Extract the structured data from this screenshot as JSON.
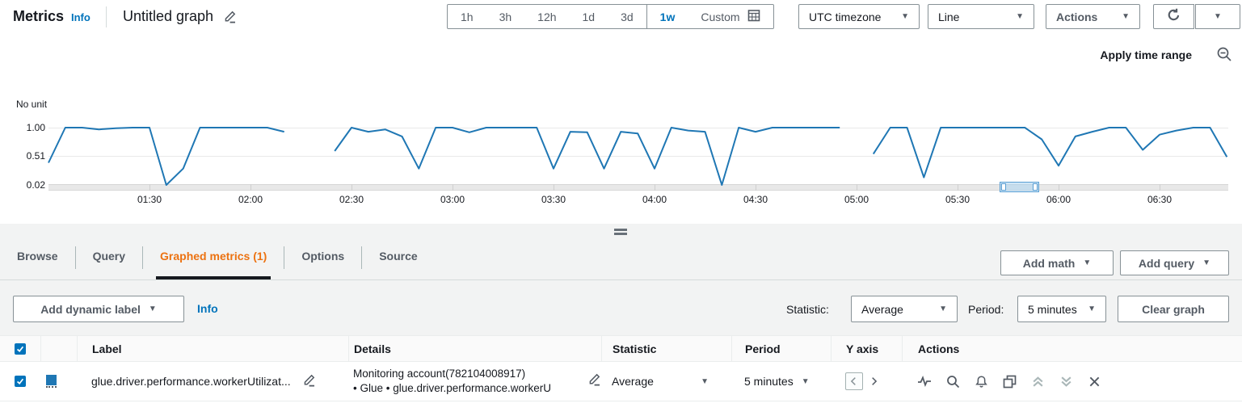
{
  "colors": {
    "accent_blue": "#0073bb",
    "active_tab_orange": "#ec7211",
    "series_blue": "#1f77b4"
  },
  "header": {
    "app_title": "Metrics",
    "info_link": "Info",
    "graph_name": "Untitled graph",
    "time_ranges": [
      "1h",
      "3h",
      "12h",
      "1d",
      "3d",
      "1w"
    ],
    "selected_time_range": "1w",
    "custom_button": "Custom",
    "timezone_dropdown": "UTC timezone",
    "chart_type_dropdown": "Line",
    "actions_button": "Actions"
  },
  "chart": {
    "apply_time_range_label": "Apply time range",
    "unit_label": "No unit"
  },
  "chart_data": {
    "type": "line",
    "title": "",
    "ylabel": "No unit",
    "ylim": [
      0.02,
      1.0
    ],
    "grid": true,
    "legend_position": "none",
    "y_tick_labels": [
      "1.00",
      "0.51",
      "0.02"
    ],
    "x_tick_labels": [
      "01:30",
      "02:00",
      "02:30",
      "03:00",
      "03:30",
      "04:00",
      "04:30",
      "05:00",
      "05:30",
      "06:00",
      "06:30"
    ],
    "x_tick_minutes": [
      90,
      120,
      150,
      180,
      210,
      240,
      270,
      300,
      330,
      360,
      390
    ],
    "x_range_minutes": [
      60,
      410
    ],
    "series": [
      {
        "name": "glue.driver.performance.workerUtilization",
        "color": "#1f77b4",
        "x_minutes": [
          60,
          65,
          70,
          75,
          80,
          85,
          90,
          95,
          100,
          105,
          110,
          115,
          120,
          125,
          130,
          135,
          140,
          145,
          150,
          155,
          160,
          165,
          170,
          175,
          180,
          185,
          190,
          195,
          200,
          205,
          210,
          215,
          220,
          225,
          230,
          235,
          240,
          245,
          250,
          255,
          260,
          265,
          270,
          275,
          280,
          285,
          290,
          295,
          300,
          305,
          310,
          315,
          320,
          325,
          330,
          335,
          340,
          345,
          350,
          355,
          360,
          365,
          370,
          375,
          380,
          385,
          390,
          395,
          400,
          405,
          410
        ],
        "values": [
          0.4,
          1.0,
          1.0,
          0.97,
          0.99,
          1.0,
          1.0,
          0.02,
          0.3,
          1.0,
          1.0,
          1.0,
          1.0,
          1.0,
          0.93,
          null,
          null,
          0.6,
          1.0,
          0.93,
          0.97,
          0.85,
          0.3,
          1.0,
          1.0,
          0.92,
          1.0,
          1.0,
          1.0,
          1.0,
          0.3,
          0.93,
          0.92,
          0.3,
          0.93,
          0.9,
          0.3,
          1.0,
          0.95,
          0.93,
          0.02,
          1.0,
          0.93,
          1.0,
          1.0,
          1.0,
          1.0,
          1.0,
          null,
          0.55,
          1.0,
          1.0,
          0.15,
          1.0,
          1.0,
          1.0,
          1.0,
          1.0,
          1.0,
          0.8,
          0.35,
          0.85,
          0.93,
          1.0,
          1.0,
          0.62,
          0.88,
          0.95,
          1.0,
          1.0,
          0.5
        ]
      }
    ]
  },
  "tabs": {
    "items": [
      {
        "label": "Browse"
      },
      {
        "label": "Query"
      },
      {
        "label": "Graphed metrics (1)"
      },
      {
        "label": "Options"
      },
      {
        "label": "Source"
      }
    ],
    "active_tab": "Graphed metrics (1)",
    "add_math_button": "Add math",
    "add_query_button": "Add query"
  },
  "toolbar": {
    "add_dynamic_label_button": "Add dynamic label",
    "info_link": "Info",
    "statistic_label": "Statistic:",
    "statistic_value": "Average",
    "period_label": "Period:",
    "period_value": "5 minutes",
    "clear_graph_button": "Clear graph"
  },
  "table": {
    "columns": [
      "Label",
      "Details",
      "Statistic",
      "Period",
      "Y axis",
      "Actions"
    ],
    "rows": [
      {
        "selected": true,
        "color": "#1f77b4",
        "label": "glue.driver.performance.workerUtilizat...",
        "details_line1": "Monitoring account(782104008917)",
        "details_line2": "• Glue • glue.driver.performance.workerU",
        "statistic": "Average",
        "period": "5 minutes"
      }
    ]
  }
}
